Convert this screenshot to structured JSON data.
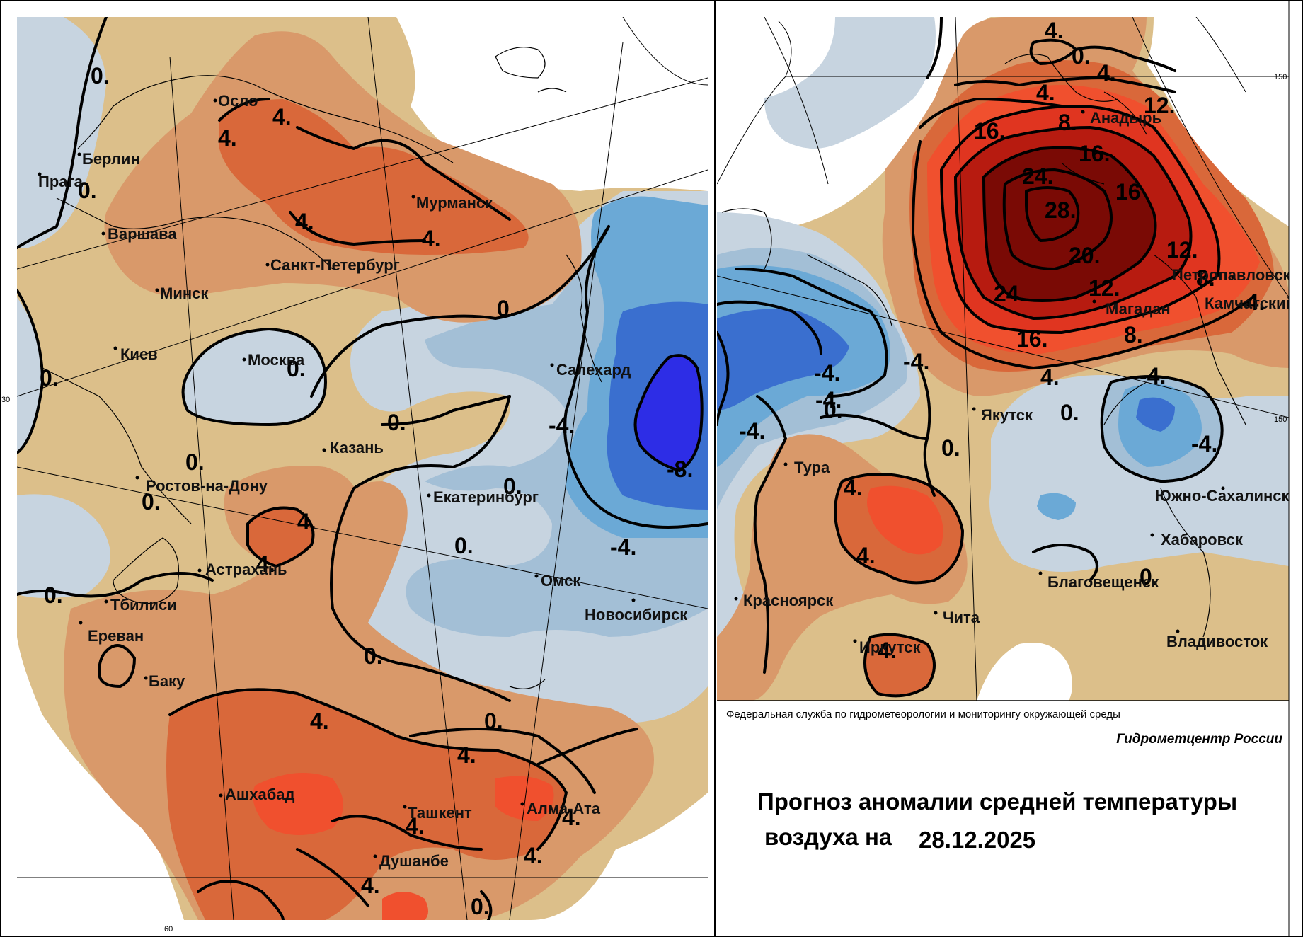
{
  "info": {
    "agency": "Федеральная служба по гидрометеорологии и мониторингу окружающей среды",
    "center": "Гидрометцентр России",
    "title_line1": "Прогноз аномалии средней температуры",
    "title_line2": "воздуха на",
    "date": "28.12.2025"
  },
  "legend_colors": {
    "minus8": "#2d2de6",
    "minus6": "#3a6fcf",
    "minus4": "#6ba9d6",
    "minus2": "#a3bfd6",
    "zero_neg": "#c7d4e0",
    "zero_pos": "#dcbf8a",
    "plus2": "#d9996a",
    "plus4": "#d9683a",
    "plus6": "#f0502e",
    "plus12": "#e03520",
    "plus16": "#b71b10",
    "plus24": "#7a0a05"
  },
  "grid_labels": {
    "west_lat30": "30",
    "west_lon60": "60",
    "east_lat150": "150",
    "east_lon150": "150"
  },
  "west_map": {
    "cities": [
      {
        "name": "Осло"
      },
      {
        "name": "Берлин"
      },
      {
        "name": "Прага"
      },
      {
        "name": "Варшава"
      },
      {
        "name": "Мурманск"
      },
      {
        "name": "Санкт-Петербург"
      },
      {
        "name": "Минск"
      },
      {
        "name": "Киев"
      },
      {
        "name": "Москва"
      },
      {
        "name": "Салехард"
      },
      {
        "name": "Казань"
      },
      {
        "name": "Ростов-на-Дону"
      },
      {
        "name": "Екатеринбург"
      },
      {
        "name": "Астрахань"
      },
      {
        "name": "Омск"
      },
      {
        "name": "Тбилиси"
      },
      {
        "name": "Новосибирск"
      },
      {
        "name": "Ереван"
      },
      {
        "name": "Баку"
      },
      {
        "name": "Ашхабад"
      },
      {
        "name": "Ташкент"
      },
      {
        "name": "Алма-Ата"
      },
      {
        "name": "Душанбе"
      }
    ],
    "contour_labels": [
      "0.",
      "4.",
      "4.",
      "0.",
      "4.",
      "4.",
      "0.",
      "0.",
      "0.",
      "-4.",
      "0.",
      "0.",
      "-8.",
      "0.",
      "4.",
      "0.",
      "4.",
      "0.",
      "-4.",
      "0.",
      "0.",
      "4.",
      "0.",
      "4.",
      "4.",
      "4.",
      "4.",
      "4.",
      "0."
    ]
  },
  "east_map": {
    "cities": [
      {
        "name": "Анадырь"
      },
      {
        "name": "Петропавловск"
      },
      {
        "name": "Камчатский"
      },
      {
        "name": "Магадан"
      },
      {
        "name": "Якутск"
      },
      {
        "name": "Тура"
      },
      {
        "name": "Южно-Сахалинск"
      },
      {
        "name": "Хабаровск"
      },
      {
        "name": "Благовещенск"
      },
      {
        "name": "Красноярск"
      },
      {
        "name": "Чита"
      },
      {
        "name": "Иркутск"
      },
      {
        "name": "Владивосток"
      }
    ],
    "contour_labels": [
      "4.",
      "0.",
      "4.",
      "4.",
      "8.",
      "12.",
      "16.",
      "16.",
      "24.",
      "28.",
      "16",
      "12.",
      "20.",
      "24.",
      "12.",
      "8.",
      "8.",
      "16.",
      "4.",
      "-4.",
      "-4.",
      "-4.",
      "-4.",
      "0.",
      "0.",
      "0.",
      "-4.",
      "-4.",
      "-4.",
      "4.",
      "4.",
      "0.",
      "4."
    ]
  }
}
